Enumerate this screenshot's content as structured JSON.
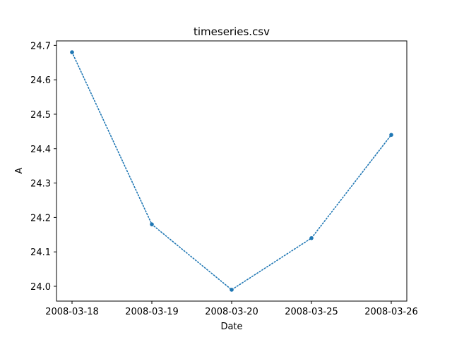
{
  "chart_data": {
    "type": "line",
    "title": "timeseries.csv",
    "xlabel": "Date",
    "ylabel": "A",
    "categories": [
      "2008-03-18",
      "2008-03-19",
      "2008-03-20",
      "2008-03-25",
      "2008-03-26"
    ],
    "series": [
      {
        "values": [
          24.68,
          24.18,
          23.99,
          24.14,
          24.44
        ],
        "color": "#1f77b4",
        "line_style": "dotted",
        "marker": "point"
      }
    ],
    "yticks": [
      "24.0",
      "24.1",
      "24.2",
      "24.3",
      "24.4",
      "24.5",
      "24.6",
      "24.7"
    ],
    "ylim": [
      23.957,
      24.713
    ],
    "grid": false,
    "legend": "none"
  }
}
